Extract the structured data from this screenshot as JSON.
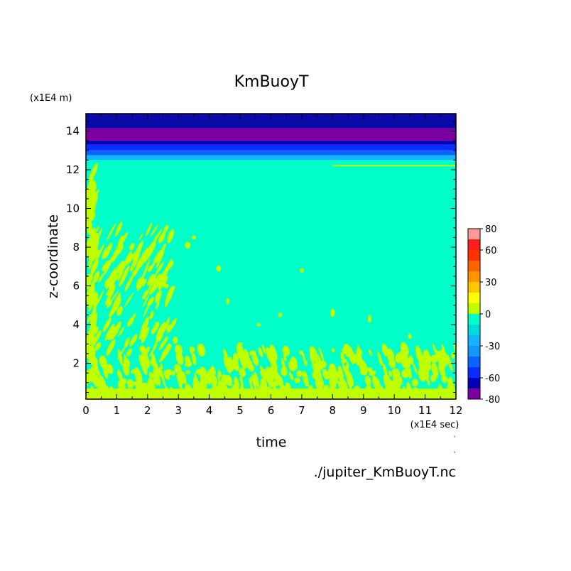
{
  "chart_data": {
    "type": "heatmap",
    "title": "KmBuoyT",
    "xlabel": "time",
    "ylabel": "z-coordinate",
    "x_unit": "(x1E4 sec)",
    "y_unit": "(x1E4 m)",
    "source_file": "./jupiter_KmBuoyT.nc",
    "xlim": [
      0,
      12
    ],
    "ylim": [
      0.15,
      14.9
    ],
    "x_ticks": [
      "0",
      "1",
      "2",
      "3",
      "4",
      "5",
      "6",
      "7",
      "8",
      "9",
      "10",
      "11",
      "12"
    ],
    "y_ticks": [
      "2",
      "4",
      "6",
      "8",
      "10",
      "12",
      "14"
    ],
    "colorbar": {
      "range": [
        -80,
        80
      ],
      "tick_labels": [
        "80",
        "60",
        "30",
        "0",
        "-30",
        "-60",
        "-80"
      ],
      "tick_values": [
        80,
        60,
        30,
        0,
        -30,
        -60,
        -80
      ],
      "levels": [
        {
          "from": -80,
          "to": -70,
          "color": "#7b00a0"
        },
        {
          "from": -70,
          "to": -60,
          "color": "#0000b4"
        },
        {
          "from": -60,
          "to": -50,
          "color": "#0a2dff"
        },
        {
          "from": -50,
          "to": -40,
          "color": "#0a64ff"
        },
        {
          "from": -40,
          "to": -30,
          "color": "#1496ff"
        },
        {
          "from": -30,
          "to": -20,
          "color": "#14b4ff"
        },
        {
          "from": -20,
          "to": -10,
          "color": "#00dcdc"
        },
        {
          "from": -10,
          "to": 0,
          "color": "#00ffc8"
        },
        {
          "from": 0,
          "to": 10,
          "color": "#bfff00"
        },
        {
          "from": 10,
          "to": 20,
          "color": "#ffff00"
        },
        {
          "from": 20,
          "to": 30,
          "color": "#ffc800"
        },
        {
          "from": 30,
          "to": 40,
          "color": "#ff9600"
        },
        {
          "from": 40,
          "to": 50,
          "color": "#ff6400"
        },
        {
          "from": 50,
          "to": 60,
          "color": "#ff3200"
        },
        {
          "from": 60,
          "to": 70,
          "color": "#ff1e1e"
        },
        {
          "from": 70,
          "to": 80,
          "color": "#ff9a9a"
        }
      ]
    },
    "bands": [
      {
        "z_from": 14.15,
        "z_to": 14.9,
        "value_range": [
          -70,
          -60
        ],
        "color": "#0a0aa8"
      },
      {
        "z_from": 13.5,
        "z_to": 14.15,
        "value_range": [
          -80,
          -70
        ],
        "color": "#7b00a0"
      },
      {
        "z_from": 13.3,
        "z_to": 13.5,
        "value_range": [
          -70,
          -60
        ],
        "color": "#0000b4"
      },
      {
        "z_from": 13.0,
        "z_to": 13.3,
        "value_range": [
          -60,
          -50
        ],
        "color": "#0a2dff"
      },
      {
        "z_from": 12.75,
        "z_to": 13.0,
        "value_range": [
          -50,
          -40
        ],
        "color": "#0a64ff"
      },
      {
        "z_from": 12.5,
        "z_to": 12.75,
        "value_range": [
          -40,
          -20
        ],
        "color": "#14b4ff"
      },
      {
        "z_from": 0.15,
        "z_to": 12.5,
        "value_range": [
          -10,
          0
        ],
        "color": "#00ffc8"
      }
    ],
    "patches_color": "#bfff00"
  }
}
